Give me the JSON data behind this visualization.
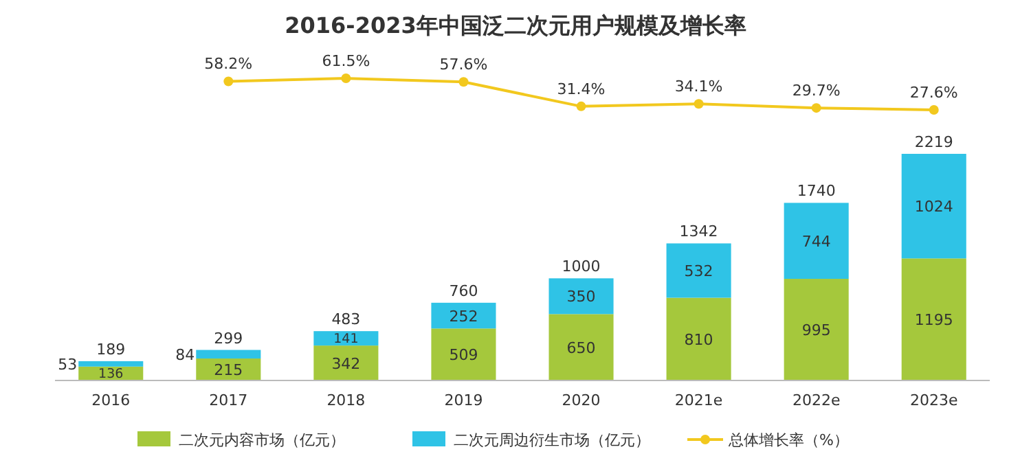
{
  "chart_data": [
    {
      "type": "line",
      "title": "2016-2023年中国泛二次元用户规模及增长率",
      "categories": [
        null,
        null,
        null,
        null,
        null,
        null,
        null,
        null
      ],
      "tick_labels": false,
      "legend": "bottom",
      "marker": "circle",
      "series": [
        {
          "name": "总体增长率（%）",
          "color": "#f2c81e",
          "values": [
            null,
            58.2,
            61.5,
            57.6,
            31.4,
            34.1,
            29.7,
            27.6
          ],
          "value_labels": [
            null,
            "58.2%",
            "61.5%",
            "57.6%",
            "31.4%",
            "34.1%",
            "29.7%",
            "27.6%"
          ]
        }
      ]
    },
    {
      "type": "bar",
      "categories": [
        "2016",
        "2017",
        "2018",
        "2019",
        "2020",
        "2021e",
        "2022e",
        "2023e"
      ],
      "stacked": true,
      "tick_labels": "x",
      "data_labels": true,
      "legend": "bottom",
      "series": [
        {
          "name": "二次元内容市场（亿元）",
          "color": "#a5c83c",
          "values": [
            136,
            215,
            342,
            509,
            650,
            810,
            995,
            1195
          ]
        },
        {
          "name": "二次元周边衍生市场（亿元）",
          "color": "#2fc3e6",
          "values": [
            53,
            84,
            141,
            252,
            350,
            532,
            744,
            1024
          ]
        }
      ],
      "totals": [
        "189",
        "299",
        "483",
        "760",
        "1000",
        "1342",
        "1740",
        "2219"
      ]
    }
  ]
}
